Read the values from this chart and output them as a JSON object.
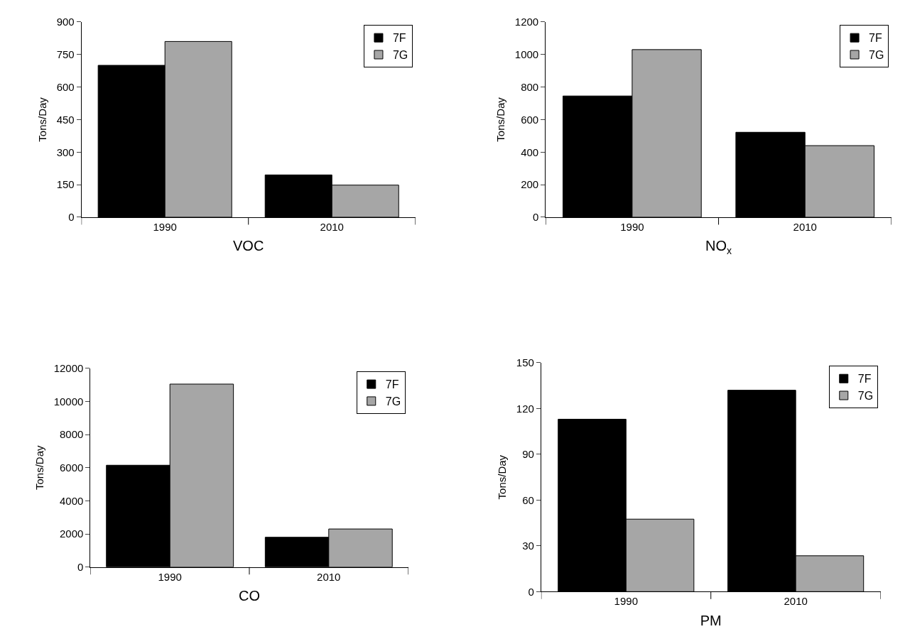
{
  "chart_data": [
    {
      "type": "bar",
      "xlabel": "VOC",
      "ylabel": "Tons/Day",
      "categories": [
        "1990",
        "2010"
      ],
      "series": [
        {
          "name": "7F",
          "color": "#000000",
          "values": [
            700,
            195
          ]
        },
        {
          "name": "7G",
          "color": "#a6a6a6",
          "values": [
            810,
            148
          ]
        }
      ],
      "ylim": [
        0,
        900
      ],
      "yticks": [
        0,
        150,
        300,
        450,
        600,
        750,
        900
      ],
      "legend": "top right"
    },
    {
      "type": "bar",
      "xlabel": "NO$_{x}$",
      "ylabel": "Tons/Day",
      "categories": [
        "1990",
        "2010"
      ],
      "series": [
        {
          "name": "7F",
          "color": "#000000",
          "values": [
            745,
            522
          ]
        },
        {
          "name": "7G",
          "color": "#a6a6a6",
          "values": [
            1030,
            440
          ]
        }
      ],
      "ylim": [
        0,
        1200
      ],
      "yticks": [
        0,
        200,
        400,
        600,
        800,
        1000,
        1200
      ],
      "legend": "top right"
    },
    {
      "type": "bar",
      "xlabel": "CO",
      "ylabel": "Tons/Day",
      "categories": [
        "1990",
        "2010"
      ],
      "series": [
        {
          "name": "7F",
          "color": "#000000",
          "values": [
            6150,
            1800
          ]
        },
        {
          "name": "7G",
          "color": "#a6a6a6",
          "values": [
            11050,
            2300
          ]
        }
      ],
      "ylim": [
        0,
        12000
      ],
      "yticks": [
        0,
        2000,
        4000,
        6000,
        8000,
        10000,
        12000
      ],
      "legend": "top right"
    },
    {
      "type": "bar",
      "xlabel": "PM",
      "ylabel": "Tons/Day",
      "categories": [
        "1990",
        "2010"
      ],
      "series": [
        {
          "name": "7F",
          "color": "#000000",
          "values": [
            113,
            132
          ]
        },
        {
          "name": "7G",
          "color": "#a6a6a6",
          "values": [
            47.5,
            23.5
          ]
        }
      ],
      "ylim": [
        0,
        150
      ],
      "yticks": [
        0,
        30,
        60,
        90,
        120,
        150
      ],
      "legend": "top right"
    }
  ]
}
